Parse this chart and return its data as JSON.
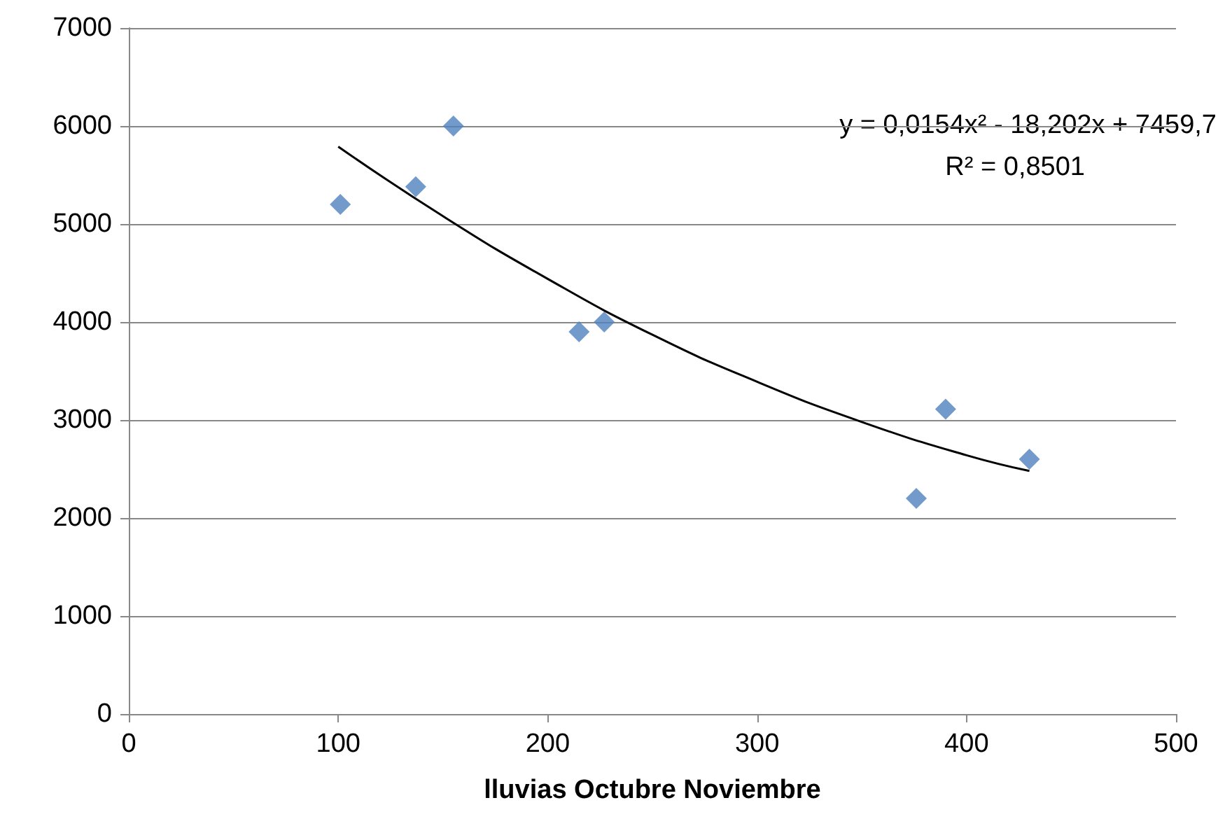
{
  "chart_data": {
    "type": "scatter",
    "xlabel": "lluvias Octubre Noviembre",
    "series": [
      {
        "x": [
          101,
          137,
          155,
          215,
          227,
          376,
          390,
          430
        ],
        "values": [
          5200,
          5380,
          6000,
          3900,
          4000,
          2200,
          3110,
          2600
        ],
        "color": "#4f81bd",
        "marker": "diamond"
      },
      {
        "type": "line",
        "x": [
          100,
          150,
          200,
          250,
          300,
          350,
          400,
          430
        ],
        "values": [
          5790,
          5080,
          4440,
          3870,
          3390,
          2980,
          2640,
          2480
        ],
        "color": "#000000",
        "marker": "none"
      }
    ],
    "annotations": [
      "y = 0,0154x² - 18,202x + 7459,7",
      "R² = 0,8501"
    ],
    "xlim": [
      0,
      500
    ],
    "xticks": [
      0,
      100,
      200,
      300,
      400,
      500
    ],
    "ylim": [
      0,
      7000
    ],
    "yticks": [
      0,
      1000,
      2000,
      3000,
      4000,
      5000,
      6000,
      7000
    ],
    "grid": "y"
  }
}
